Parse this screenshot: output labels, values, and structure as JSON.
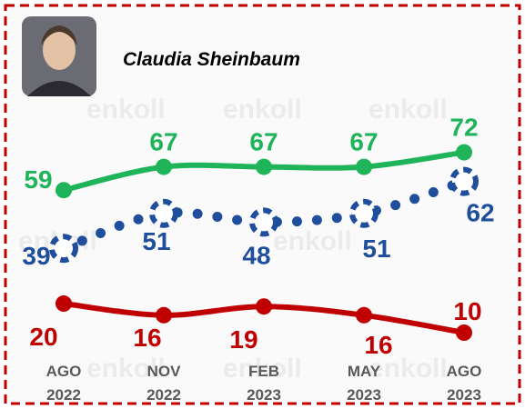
{
  "chart_data": {
    "type": "line",
    "title": "Claudia Sheinbaum",
    "watermark": "enkoll",
    "categories": [
      "AGO 2022",
      "NOV 2022",
      "FEB 2023",
      "MAY 2023",
      "AGO 2023"
    ],
    "series": [
      {
        "name": "Green",
        "color": "#1fb45a",
        "values": [
          59,
          67,
          67,
          67,
          72
        ]
      },
      {
        "name": "Blue",
        "color": "#1f4e9c",
        "values": [
          39,
          51,
          48,
          51,
          62
        ]
      },
      {
        "name": "Red",
        "color": "#c00000",
        "values": [
          20,
          16,
          19,
          16,
          10
        ]
      }
    ],
    "ylim": [
      0,
      100
    ]
  }
}
